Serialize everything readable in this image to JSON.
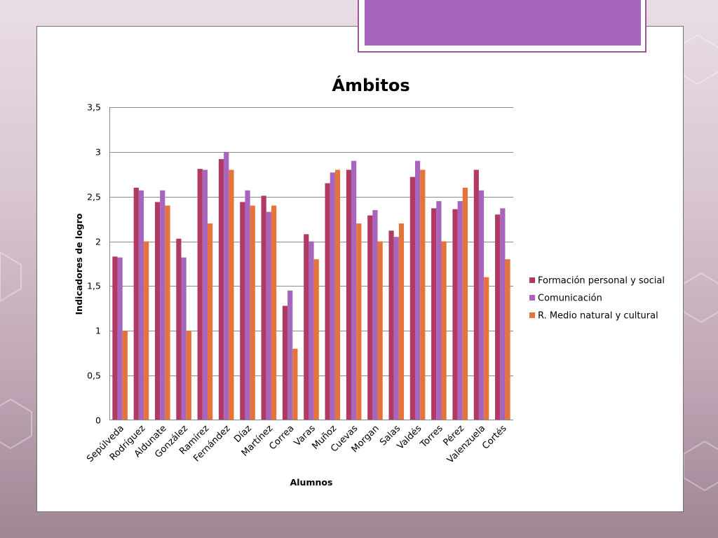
{
  "chart_data": {
    "type": "bar",
    "title": "Ámbitos",
    "xlabel": "Alumnos",
    "ylabel": "Indicadores de logro",
    "ylim": [
      0,
      3.5
    ],
    "yticks": [
      "0",
      "0,5",
      "1",
      "1,5",
      "2",
      "2,5",
      "3",
      "3,5"
    ],
    "ytick_values": [
      0,
      0.5,
      1,
      1.5,
      2,
      2.5,
      3,
      3.5
    ],
    "grid": true,
    "legend_position": "right",
    "categories": [
      "Sepúlveda",
      "Rodríguez",
      "Aldunate",
      "González",
      "Ramírez",
      "Fernández",
      "Díaz",
      "Martínez",
      "Correa",
      "Varas",
      "Muñoz",
      "Cuevas",
      "Morgan",
      "Salas",
      "Valdés",
      "Torres",
      "Pérez",
      "Valenzuela",
      "Cortés"
    ],
    "series": [
      {
        "name": "Formación personal y social",
        "color": "#b03a64",
        "values": [
          1.83,
          2.6,
          2.44,
          2.03,
          2.81,
          2.92,
          2.44,
          2.51,
          1.28,
          2.08,
          2.65,
          2.8,
          2.29,
          2.12,
          2.72,
          2.37,
          2.36,
          2.8,
          2.3
        ]
      },
      {
        "name": "Comunicación",
        "color": "#a865be",
        "values": [
          1.82,
          2.57,
          2.57,
          1.82,
          2.8,
          3.0,
          2.57,
          2.33,
          1.45,
          2.0,
          2.77,
          2.9,
          2.35,
          2.05,
          2.9,
          2.45,
          2.45,
          2.57,
          2.37
        ]
      },
      {
        "name": "R. Medio natural y cultural",
        "color": "#e5743a",
        "values": [
          1.0,
          2.0,
          2.4,
          1.0,
          2.2,
          2.8,
          2.4,
          2.4,
          0.8,
          1.8,
          2.8,
          2.2,
          2.0,
          2.2,
          2.8,
          2.0,
          2.6,
          1.6,
          1.8
        ]
      }
    ]
  }
}
